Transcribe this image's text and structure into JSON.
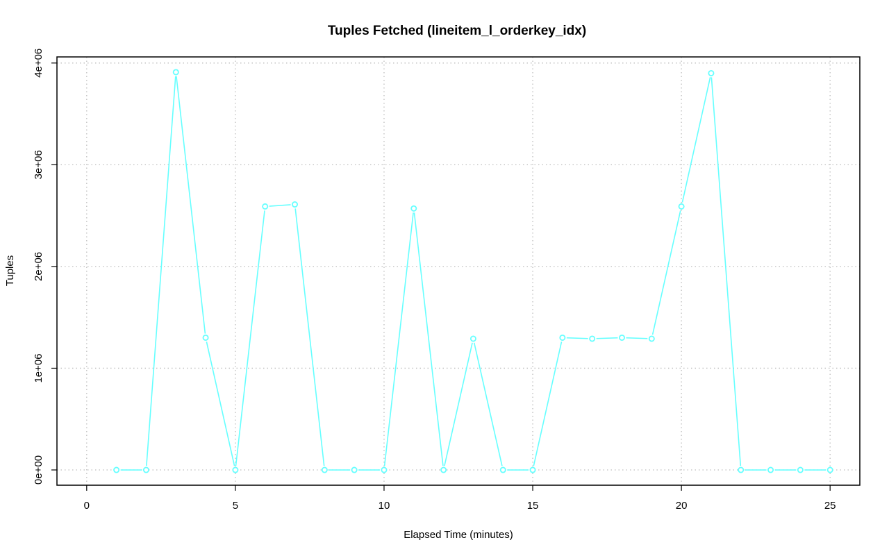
{
  "chart_data": {
    "type": "line",
    "title": "Tuples Fetched (lineitem_l_orderkey_idx)",
    "xlabel": "Elapsed Time (minutes)",
    "ylabel": "Tuples",
    "xlim": [
      -1,
      26
    ],
    "ylim": [
      -150000,
      4060000
    ],
    "x_ticks": [
      0,
      5,
      10,
      15,
      20,
      25
    ],
    "x_tick_labels": [
      "0",
      "5",
      "10",
      "15",
      "20",
      "25"
    ],
    "y_ticks": [
      0,
      1000000,
      2000000,
      3000000,
      4000000
    ],
    "y_tick_labels": [
      "0e+00",
      "1e+06",
      "2e+06",
      "3e+06",
      "4e+06"
    ],
    "grid": true,
    "series_color": "#66ffff",
    "series": [
      {
        "x": [
          1,
          2,
          3,
          4,
          5,
          6,
          7,
          8,
          9,
          10,
          11,
          12,
          13,
          14,
          15,
          16,
          17,
          18,
          19,
          20,
          21,
          22,
          23,
          24,
          25
        ],
        "values": [
          0,
          0,
          3910000,
          1300000,
          0,
          2590000,
          2610000,
          0,
          0,
          0,
          2570000,
          0,
          1290000,
          0,
          0,
          1300000,
          1290000,
          1300000,
          1290000,
          2590000,
          3900000,
          0,
          0,
          0,
          0
        ]
      }
    ]
  }
}
